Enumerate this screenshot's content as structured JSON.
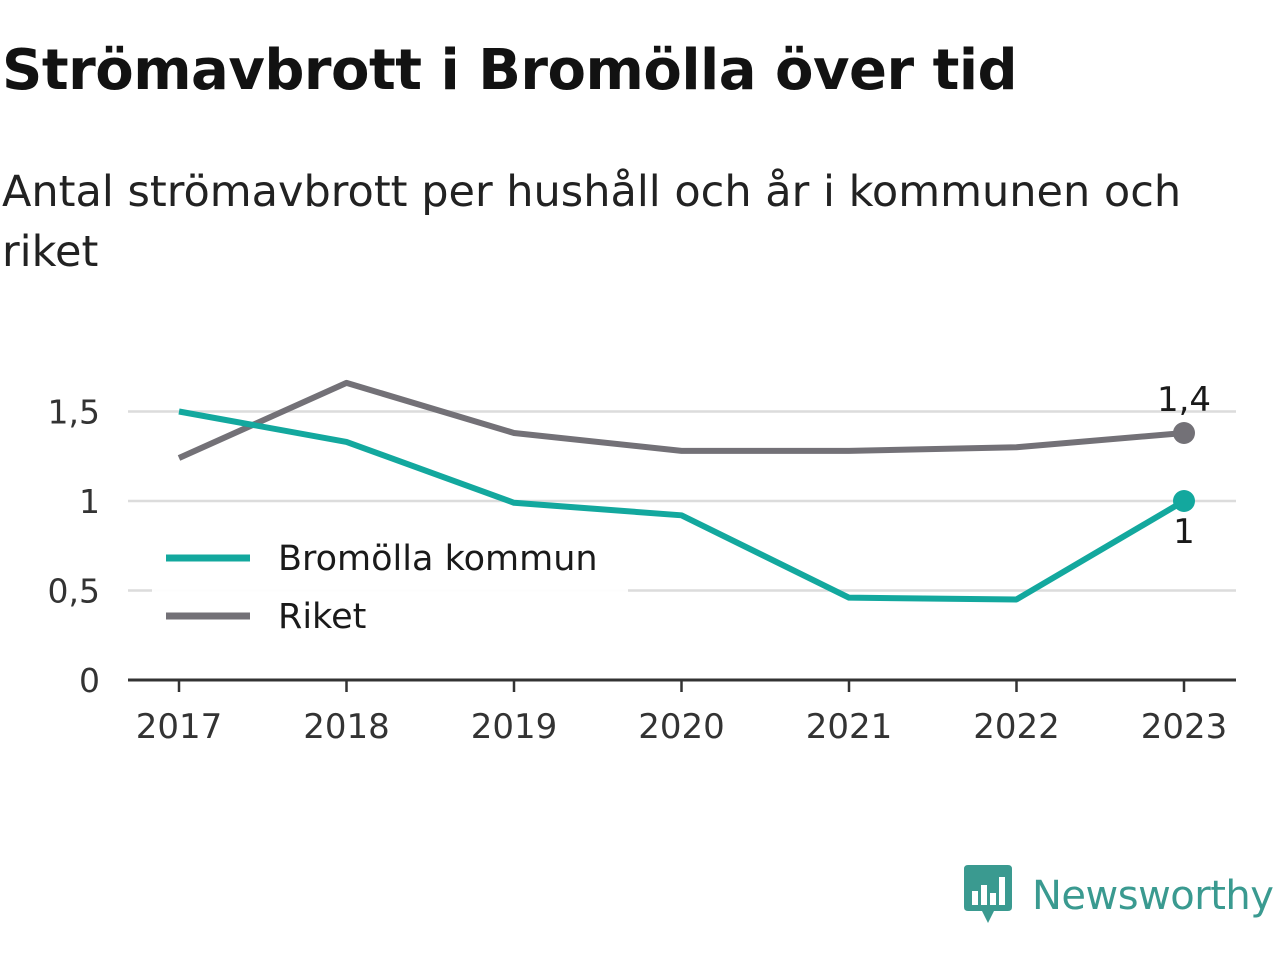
{
  "title": "Strömavbrott i Bromölla över tid",
  "subtitle": "Antal strömavbrott per hushåll och år i kommunen och riket",
  "brand": {
    "name": "Newsworthy",
    "icon": "newsworthy-logo-icon",
    "color": "#3a9a90"
  },
  "chart_data": {
    "type": "line",
    "x": [
      "2017",
      "2018",
      "2019",
      "2020",
      "2021",
      "2022",
      "2023"
    ],
    "ylim": [
      0,
      1.7
    ],
    "yticks": [
      {
        "value": 0,
        "label": "0"
      },
      {
        "value": 0.5,
        "label": "0,5"
      },
      {
        "value": 1,
        "label": "1"
      },
      {
        "value": 1.5,
        "label": "1,5"
      }
    ],
    "grid": true,
    "legend_position": "bottom-left",
    "series": [
      {
        "name": "Bromölla kommun",
        "color": "#13a89e",
        "values": [
          1.5,
          1.33,
          0.99,
          0.92,
          0.46,
          0.45,
          1.0
        ],
        "end_label": "1",
        "end_label_position": "below"
      },
      {
        "name": "Riket",
        "color": "#737177",
        "values": [
          1.24,
          1.66,
          1.38,
          1.28,
          1.28,
          1.3,
          1.38
        ],
        "end_label": "1,4",
        "end_label_position": "above"
      }
    ]
  }
}
